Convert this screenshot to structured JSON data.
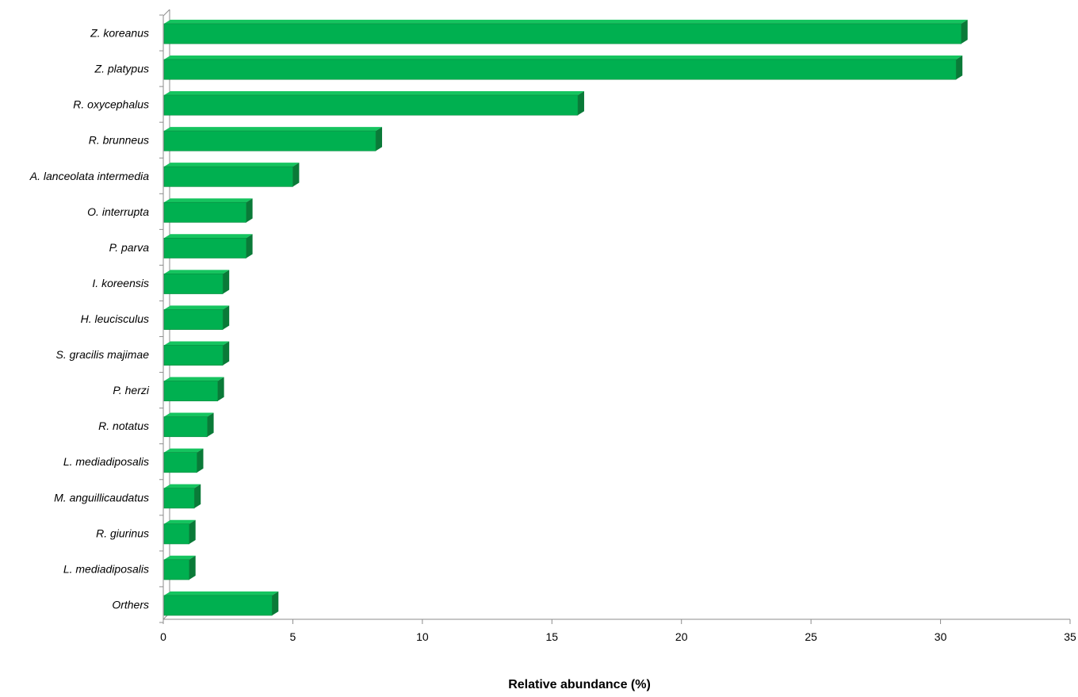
{
  "chart_data": {
    "type": "bar",
    "orientation": "horizontal",
    "style": "3d",
    "categories": [
      "Z. koreanus",
      "Z. platypus",
      "R. oxycephalus",
      "R. brunneus",
      "A. lanceolata intermedia",
      "O. interrupta",
      "P. parva",
      "I. koreensis",
      "H. leucisculus",
      "S. gracilis majimae",
      "P. herzi",
      "R. notatus",
      "L. mediadiposalis",
      "M. anguillicaudatus",
      "R. giurinus",
      "L. mediadiposalis",
      "Orthers"
    ],
    "values": [
      30.8,
      30.6,
      16.0,
      8.2,
      5.0,
      3.2,
      3.2,
      2.3,
      2.3,
      2.3,
      2.1,
      1.7,
      1.3,
      1.2,
      1.0,
      1.0,
      4.2
    ],
    "xlabel": "Relative abundance (%)",
    "ylabel": "",
    "title": "",
    "xlim": [
      0,
      35
    ],
    "xticks": [
      0,
      5,
      10,
      15,
      20,
      25,
      30,
      35
    ],
    "grid": false,
    "legend": "none",
    "colors": {
      "bar_front": "#00b050",
      "bar_top": "#15c45f",
      "bar_side": "#0a7a38",
      "axis": "#8c8c8c"
    }
  }
}
